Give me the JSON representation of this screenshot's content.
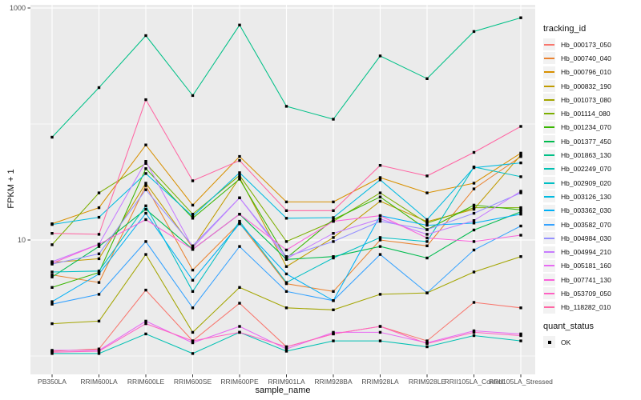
{
  "legend": {
    "tracking_title": "tracking_id",
    "quant_title": "quant_status",
    "quant_ok": "OK"
  },
  "colors": {
    "panel_bg": "#EBEBEB",
    "gridline": "#FFFFFF",
    "axis_text": "#4D4D4D",
    "tick_mark": "#333333",
    "point": "#000000",
    "legend_key_bg": "#F2F2F2"
  },
  "chart_data": {
    "type": "line",
    "title": "",
    "xlabel": "sample_name",
    "ylabel": "FPKM + 1",
    "y_scale": "log10",
    "ylim": [
      0.7,
      1100
    ],
    "legend_position": "right",
    "point_marker": "small black square (quant_status = OK)",
    "y_axis": {
      "ticks": [
        {
          "value": 1000,
          "label": "1000"
        },
        {
          "value": 10,
          "label": "10"
        }
      ],
      "minor_gridlines": [
        1,
        100
      ]
    },
    "x_categories": [
      "PB350LA",
      "RRIM600LA",
      "RRIM600LE",
      "RRIM600SE",
      "RRIM600PE",
      "RRIM901LA",
      "RRIM928BA",
      "RRIM928LA",
      "RRIM928LE",
      "RRII105LA_Control",
      "RRII105LA_Stressed"
    ],
    "series": [
      {
        "name": "Hb_000173_050",
        "color": "#F8766D",
        "values": [
          1.1,
          1.15,
          3.7,
          1.35,
          2.85,
          1.2,
          1.55,
          1.8,
          1.35,
          2.9,
          2.6
        ]
      },
      {
        "name": "Hb_000740_040",
        "color": "#EA8331",
        "values": [
          5.0,
          4.3,
          29.4,
          5.5,
          14.0,
          4.2,
          3.6,
          10.0,
          8.9,
          27.6,
          52.4
        ]
      },
      {
        "name": "Hb_000796_010",
        "color": "#D89000",
        "values": [
          13.8,
          19.0,
          66.0,
          20.0,
          52.5,
          21.3,
          21.3,
          34.5,
          25.5,
          30.9,
          56.1
        ]
      },
      {
        "name": "Hb_000832_190",
        "color": "#C09B00",
        "values": [
          6.4,
          6.9,
          30.9,
          8.6,
          34.5,
          5.9,
          10.5,
          21.6,
          14.4,
          18.4,
          54.0
        ]
      },
      {
        "name": "Hb_001073_080",
        "color": "#A3A500",
        "values": [
          1.9,
          2.0,
          7.5,
          1.6,
          3.9,
          2.6,
          2.5,
          3.4,
          3.5,
          5.3,
          7.2
        ]
      },
      {
        "name": "Hb_001114_080",
        "color": "#7CAE00",
        "values": [
          9.1,
          25.5,
          45.7,
          16.7,
          36.0,
          9.7,
          14.5,
          25.5,
          14.0,
          19.0,
          19.0
        ]
      },
      {
        "name": "Hb_001234_070",
        "color": "#39B600",
        "values": [
          3.9,
          5.25,
          41.2,
          15.4,
          33.5,
          7.0,
          15.0,
          23.5,
          12.3,
          20.0,
          18.2
        ]
      },
      {
        "name": "Hb_001377_450",
        "color": "#00BB4E",
        "values": [
          4.8,
          8.8,
          18.4,
          8.3,
          16.7,
          6.8,
          7.2,
          8.8,
          7.0,
          12.2,
          17.5
        ]
      },
      {
        "name": "Hb_001863_130",
        "color": "#00C087",
        "values": [
          77,
          206,
          578,
          176,
          713,
          142,
          110,
          386,
          246,
          627,
          824
        ]
      },
      {
        "name": "Hb_002249_070",
        "color": "#00C0B2",
        "values": [
          1.05,
          1.05,
          1.55,
          1.05,
          1.6,
          1.1,
          1.35,
          1.35,
          1.2,
          1.5,
          1.35
        ]
      },
      {
        "name": "Hb_002909_020",
        "color": "#00BFC4",
        "values": [
          5.3,
          5.4,
          19.7,
          3.6,
          14.5,
          4.3,
          7.0,
          10.5,
          9.7,
          42.6,
          35.1
        ]
      },
      {
        "name": "Hb_003126_130",
        "color": "#00BAE0",
        "values": [
          13.6,
          15.7,
          37.4,
          16.0,
          38.0,
          15.4,
          15.6,
          33.0,
          15.0,
          42.0,
          46.2
        ]
      },
      {
        "name": "Hb_003362_030",
        "color": "#00B0F6",
        "values": [
          2.94,
          5.1,
          17.0,
          4.5,
          13.8,
          5.1,
          3.0,
          16.2,
          13.4,
          14.0,
          16.7
        ]
      },
      {
        "name": "Hb_003582_070",
        "color": "#35A2FF",
        "values": [
          2.8,
          3.4,
          9.7,
          2.6,
          8.8,
          3.6,
          3.0,
          7.5,
          3.5,
          8.2,
          13.2
        ]
      },
      {
        "name": "Hb_004984_030",
        "color": "#9590FF",
        "values": [
          6.2,
          7.6,
          27.1,
          8.9,
          23.1,
          7.2,
          9.7,
          14.5,
          12.3,
          17.0,
          25.5
        ]
      },
      {
        "name": "Hb_004994_210",
        "color": "#C77CFF",
        "values": [
          6.5,
          9.2,
          47.6,
          8.6,
          23.1,
          6.9,
          11.4,
          15.2,
          11.2,
          14.7,
          26.3
        ]
      },
      {
        "name": "Hb_005181_160",
        "color": "#E76BF3",
        "values": [
          1.12,
          1.12,
          2.0,
          1.3,
          1.8,
          1.15,
          1.6,
          1.6,
          1.3,
          1.65,
          1.55
        ]
      },
      {
        "name": "Hb_007741_130",
        "color": "#FA62DB",
        "values": [
          6.3,
          9.2,
          15.0,
          8.3,
          16.7,
          8.2,
          14.5,
          16.2,
          10.4,
          9.7,
          11.0
        ]
      },
      {
        "name": "Hb_053709_050",
        "color": "#FF61C3",
        "values": [
          1.08,
          1.1,
          1.9,
          1.35,
          1.6,
          1.2,
          1.55,
          1.8,
          1.28,
          1.6,
          1.5
        ]
      },
      {
        "name": "Hb_118282_010",
        "color": "#FF67A4",
        "values": [
          11.4,
          11.2,
          162,
          32.4,
          48.5,
          17.9,
          17.9,
          44,
          35.7,
          56.9,
          95.3
        ]
      }
    ]
  }
}
